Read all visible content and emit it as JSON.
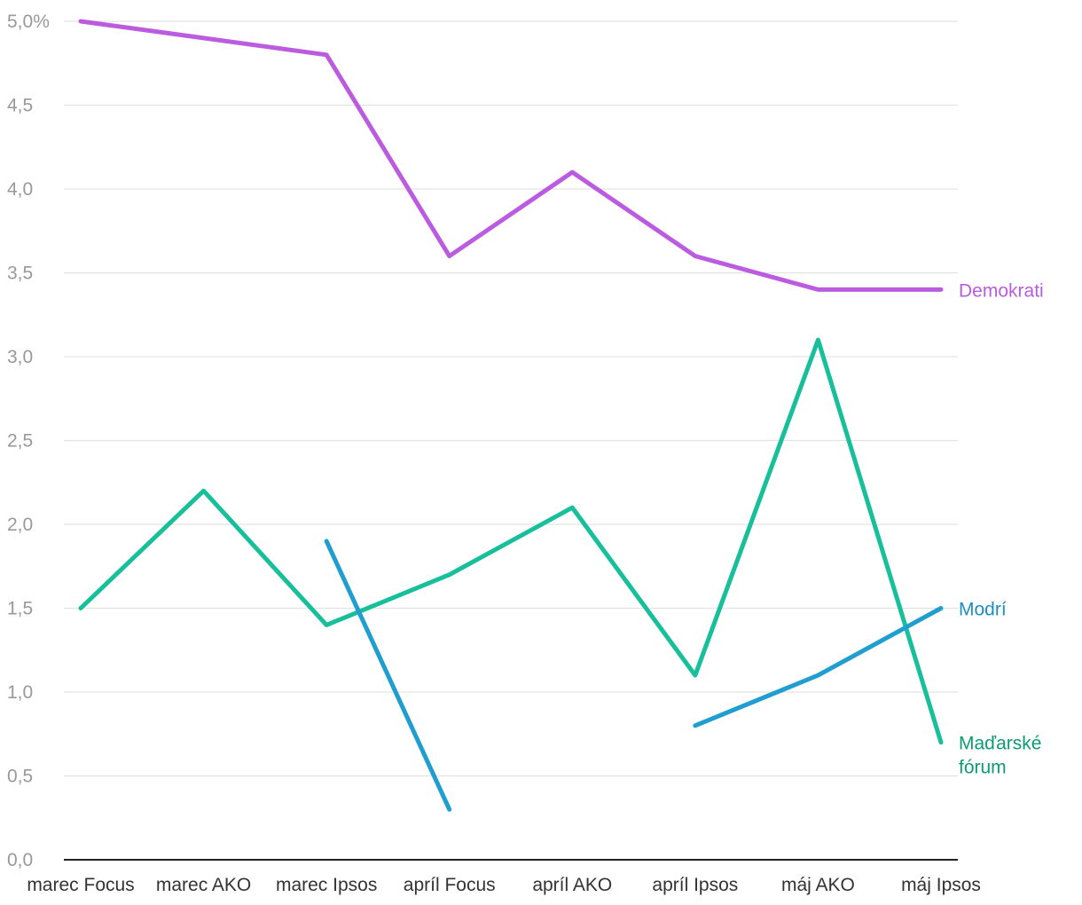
{
  "chart_data": {
    "type": "line",
    "title": "",
    "xlabel": "",
    "ylabel": "",
    "ylim": [
      0,
      5
    ],
    "y_ticks": [
      0,
      0.5,
      1,
      1.5,
      2,
      2.5,
      3,
      3.5,
      4,
      4.5,
      5
    ],
    "y_tick_labels": [
      "0,0",
      "0,5",
      "1,0",
      "1,5",
      "2,0",
      "2,5",
      "3,0",
      "3,5",
      "4,0",
      "4,5",
      "5,0%"
    ],
    "grid": true,
    "legend": "direct labels at line ends",
    "categories": [
      "marec Focus",
      "marec AKO",
      "marec Ipsos",
      "apríl Focus",
      "apríl AKO",
      "apríl Ipsos",
      "máj AKO",
      "máj Ipsos"
    ],
    "series": [
      {
        "name": "Demokrati",
        "label_lines": [
          "Demokrati"
        ],
        "color": "#bb5ce0",
        "label_color": "#bb5ce0",
        "values": [
          5.0,
          4.9,
          4.8,
          3.6,
          4.1,
          3.6,
          3.4,
          3.4
        ]
      },
      {
        "name": "Maďarské fórum",
        "label_lines": [
          "Maďarské",
          "fórum"
        ],
        "color": "#17bf9a",
        "label_color": "#0e9a78",
        "values": [
          1.5,
          2.2,
          1.4,
          1.7,
          2.1,
          1.1,
          3.1,
          0.7
        ]
      },
      {
        "name": "Modrí",
        "label_lines": [
          "Modrí"
        ],
        "color": "#209ecf",
        "label_color": "#1a8fc0",
        "values": [
          null,
          null,
          1.9,
          0.3,
          null,
          0.8,
          1.1,
          1.5
        ]
      }
    ]
  }
}
